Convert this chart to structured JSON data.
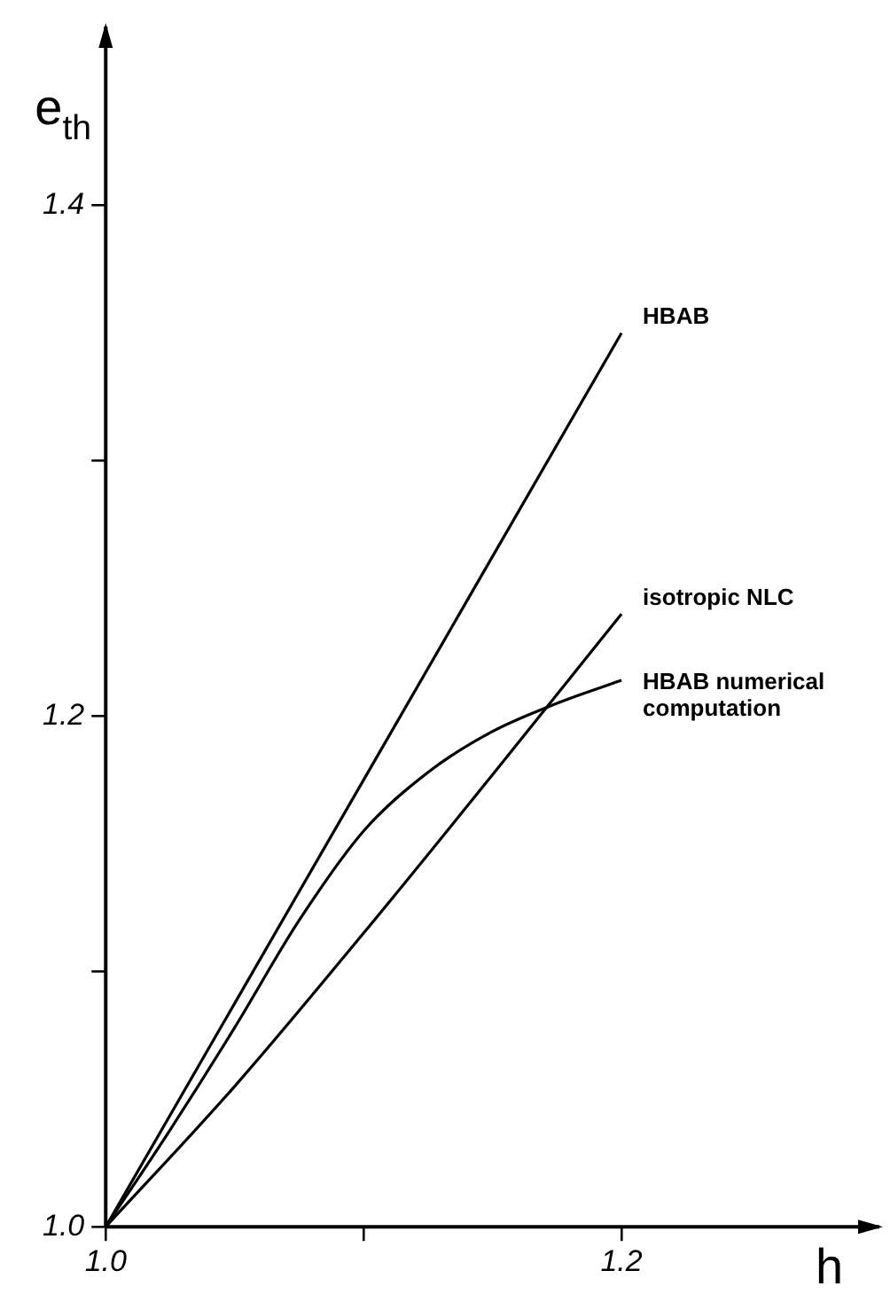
{
  "chart_data": {
    "type": "line",
    "xlabel": "h",
    "ylabel": "e$_{th}$",
    "xlim": [
      1.0,
      1.3
    ],
    "xticks": [
      {
        "value": 1.0,
        "label": "1.0"
      },
      {
        "value": 1.1,
        "label": null
      },
      {
        "value": 1.2,
        "label": "1.2"
      }
    ],
    "ylim": [
      1.0,
      1.47
    ],
    "yticks": [
      {
        "value": 1.0,
        "label": "1.0"
      },
      {
        "value": 1.1,
        "label": null
      },
      {
        "value": 1.2,
        "label": "1.2"
      },
      {
        "value": 1.3,
        "label": null
      },
      {
        "value": 1.4,
        "label": "1.4"
      }
    ],
    "grid": false,
    "legend": false,
    "marker": "none",
    "line_style": "solid",
    "series": [
      {
        "name": "HBAB",
        "color": "#000000",
        "x": [
          1.0,
          1.1,
          1.2
        ],
        "values": [
          1.0,
          1.175,
          1.35
        ]
      },
      {
        "name": "isotropic NLC",
        "color": "#000000",
        "x": [
          1.0,
          1.05,
          1.1,
          1.15,
          1.2
        ],
        "values": [
          1.0,
          1.055,
          1.115,
          1.177,
          1.24
        ]
      },
      {
        "name": "HBAB numerical computation",
        "color": "#000000",
        "x": [
          1.0,
          1.025,
          1.05,
          1.075,
          1.1,
          1.125,
          1.15,
          1.175,
          1.2
        ],
        "values": [
          1.0,
          1.038,
          1.078,
          1.12,
          1.155,
          1.178,
          1.194,
          1.205,
          1.214
        ]
      }
    ]
  }
}
